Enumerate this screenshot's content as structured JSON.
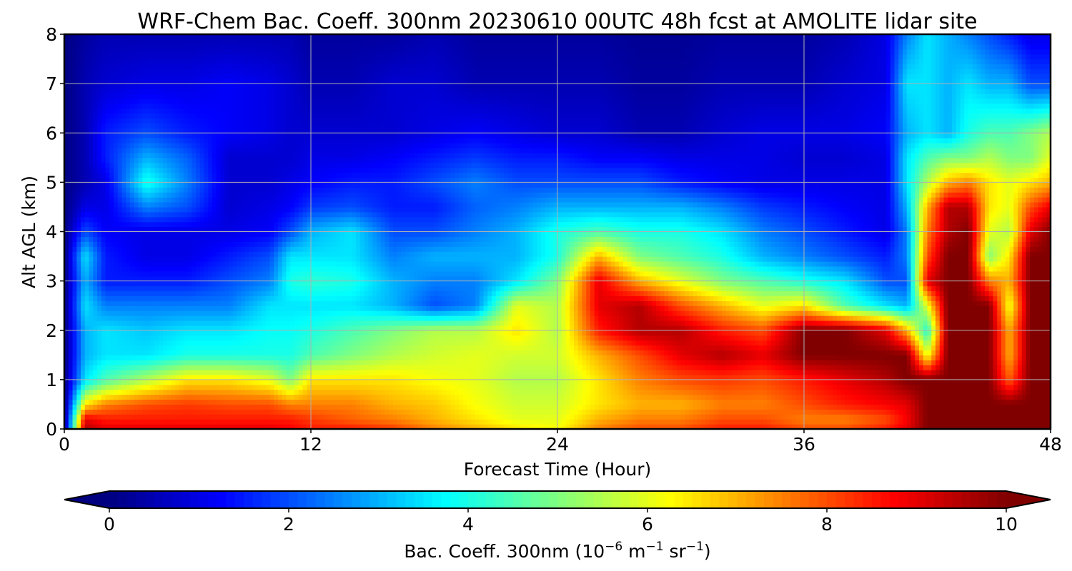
{
  "chart_data": {
    "type": "heatmap",
    "title": "WRF-Chem Bac. Coeff. 300nm  20230610 00UTC 48h fcst at AMOLITE lidar site",
    "xlabel": "Forecast Time (Hour)",
    "ylabel": "Alt AGL (km)",
    "xlim": [
      0,
      48
    ],
    "ylim": [
      0,
      8
    ],
    "xticks": [
      0,
      12,
      24,
      36,
      48
    ],
    "yticks": [
      0,
      1,
      2,
      3,
      4,
      5,
      6,
      7,
      8
    ],
    "grid": true,
    "colormap": "jet",
    "colorbar": {
      "label_main": "Bac. Coeff. 300nm  (10",
      "label_exp1": "−6",
      "label_mid": " m",
      "label_exp2": "−1",
      "label_mid2": " sr",
      "label_exp3": "−1",
      "label_end": ")",
      "range": [
        0,
        10
      ],
      "ticks": [
        0,
        2,
        4,
        6,
        8,
        10
      ],
      "extend": "both",
      "orientation": "horizontal",
      "placement": "bottom"
    },
    "x": [
      0,
      1,
      2,
      4,
      6,
      8,
      10,
      11,
      12,
      14,
      16,
      18,
      20,
      22,
      24,
      26,
      28,
      30,
      32,
      34,
      36,
      38,
      40,
      41,
      42,
      43,
      44,
      45,
      46,
      47,
      48
    ],
    "y": [
      0,
      0.2,
      0.5,
      1,
      1.5,
      2,
      2.5,
      3,
      3.5,
      4,
      4.5,
      5,
      5.5,
      6,
      7,
      8
    ],
    "z": [
      [
        0,
        9.5,
        9,
        9,
        9,
        9,
        9,
        8.8,
        8.5,
        8.5,
        8.2,
        7.5,
        7,
        6.5,
        6.2,
        7.5,
        8,
        8,
        8.5,
        8.5,
        8,
        8,
        8.5,
        9,
        10,
        10,
        10,
        10,
        10,
        10,
        10
      ],
      [
        0,
        9,
        8.5,
        8.5,
        8.5,
        8.5,
        8.5,
        8.5,
        8.2,
        7.8,
        7.5,
        7,
        6.5,
        6,
        6,
        7,
        7.5,
        7.5,
        8,
        8,
        7.5,
        7.5,
        8,
        8.8,
        10,
        10,
        10,
        10,
        10,
        10,
        10
      ],
      [
        0,
        6.5,
        7.5,
        8,
        8.2,
        8,
        8,
        7.5,
        7.5,
        7.5,
        7,
        6.8,
        6.2,
        5.8,
        5.8,
        6.5,
        7,
        7,
        7.5,
        7.5,
        8,
        8.5,
        8.8,
        9,
        10,
        10,
        10,
        10,
        10,
        10,
        10
      ],
      [
        0,
        3.5,
        4.5,
        5.5,
        6.5,
        6.5,
        6,
        5,
        6.5,
        6.5,
        6.5,
        6.2,
        6,
        5.5,
        5.5,
        6.5,
        7.5,
        8,
        8.2,
        8,
        8.5,
        9,
        9.5,
        10,
        10,
        10,
        10,
        10,
        7.8,
        10,
        10
      ],
      [
        0,
        3,
        3.5,
        3.5,
        4,
        4,
        4,
        4,
        4.5,
        5,
        5.5,
        5.8,
        6,
        5.8,
        5.8,
        7,
        8,
        9,
        9.5,
        9,
        10,
        10,
        10,
        10,
        6,
        10,
        10,
        10,
        7,
        10,
        10
      ],
      [
        0,
        3,
        3.5,
        3.2,
        3.5,
        3.5,
        3.8,
        3.8,
        4,
        4.5,
        5,
        5.5,
        5.5,
        6.5,
        5.5,
        8.5,
        9.5,
        9.5,
        8.5,
        8,
        10,
        10,
        9,
        7,
        4,
        10,
        10,
        10,
        7,
        10,
        10
      ],
      [
        0,
        3.5,
        2.5,
        2.5,
        2.5,
        2.5,
        3.5,
        3.5,
        3.5,
        3.5,
        3,
        2,
        2.5,
        6,
        5.5,
        9,
        9.5,
        8,
        7,
        6,
        6.5,
        4.5,
        3.5,
        3,
        6,
        10,
        10,
        10,
        6,
        10,
        10
      ],
      [
        0,
        3,
        1.5,
        1.5,
        1.5,
        2,
        2.5,
        4,
        4.2,
        4,
        3,
        2.5,
        2.5,
        3.5,
        5,
        9,
        7,
        6,
        5,
        4.5,
        4,
        3.5,
        2,
        2,
        9,
        10,
        10,
        7.5,
        7,
        10,
        10
      ],
      [
        0,
        3.5,
        1.5,
        1,
        1,
        1.5,
        2,
        3.5,
        3.5,
        3.5,
        2.5,
        3,
        3,
        3,
        4,
        7,
        5,
        4.5,
        4,
        3,
        2.5,
        2,
        1.5,
        2.5,
        8,
        10,
        10,
        5,
        6.5,
        10,
        10
      ],
      [
        0,
        2,
        1.2,
        1,
        1,
        1,
        1.2,
        2,
        3,
        3.5,
        2,
        2,
        2.5,
        3,
        4,
        4.5,
        4,
        4,
        3.5,
        2.5,
        2,
        1.5,
        1,
        2.5,
        7.5,
        9.5,
        10,
        6,
        5.5,
        9,
        10
      ],
      [
        0,
        1,
        1,
        2.5,
        2,
        0.8,
        1,
        1.2,
        1.8,
        2,
        1.5,
        1.5,
        2.2,
        2.5,
        3,
        3,
        3,
        3,
        2.5,
        1.8,
        1.5,
        1.2,
        1,
        3,
        7,
        9.5,
        9.5,
        6.5,
        6,
        8,
        9
      ],
      [
        0,
        0.5,
        1,
        4,
        2.5,
        0.8,
        0.8,
        1,
        1.2,
        1.5,
        1.5,
        2,
        2.5,
        2,
        2,
        2,
        2,
        1.5,
        1.2,
        1,
        1,
        1,
        1,
        3.5,
        5.5,
        7,
        7.5,
        6.5,
        6,
        6.5,
        7
      ],
      [
        0,
        0.5,
        1.5,
        3,
        2.2,
        0.8,
        0.8,
        0.8,
        1,
        1,
        1.2,
        1.5,
        1.8,
        1.5,
        1.5,
        1.2,
        1.2,
        1,
        1,
        1,
        0.8,
        0.8,
        1,
        3.5,
        4.5,
        5,
        5,
        5.5,
        5,
        5,
        6
      ],
      [
        0,
        0.5,
        1.5,
        2,
        1.5,
        1.2,
        1,
        0.8,
        0.8,
        0.8,
        0.8,
        1,
        1.2,
        1,
        0.8,
        0.8,
        0.5,
        0.5,
        0.8,
        1,
        1,
        1,
        1.2,
        3,
        3.5,
        3,
        4,
        4.5,
        4.5,
        5,
        5.5
      ],
      [
        0,
        0.5,
        0.8,
        1,
        1,
        1.2,
        1,
        0.8,
        0.5,
        0.5,
        0.8,
        0.8,
        0.5,
        0.5,
        0.5,
        0.5,
        0.3,
        0.3,
        0.5,
        0.5,
        0.5,
        0.8,
        1,
        3.5,
        3.5,
        3,
        3.5,
        3,
        3,
        2,
        2
      ],
      [
        0,
        0.3,
        0.5,
        0.5,
        0.5,
        0.5,
        0.5,
        0.5,
        0.3,
        0.3,
        0.3,
        0.5,
        0.3,
        0.3,
        0.3,
        0.3,
        0.2,
        0.2,
        0.3,
        0.3,
        0.3,
        0.5,
        1,
        2.5,
        3.5,
        3,
        2.5,
        2,
        1.5,
        1,
        1
      ]
    ]
  }
}
